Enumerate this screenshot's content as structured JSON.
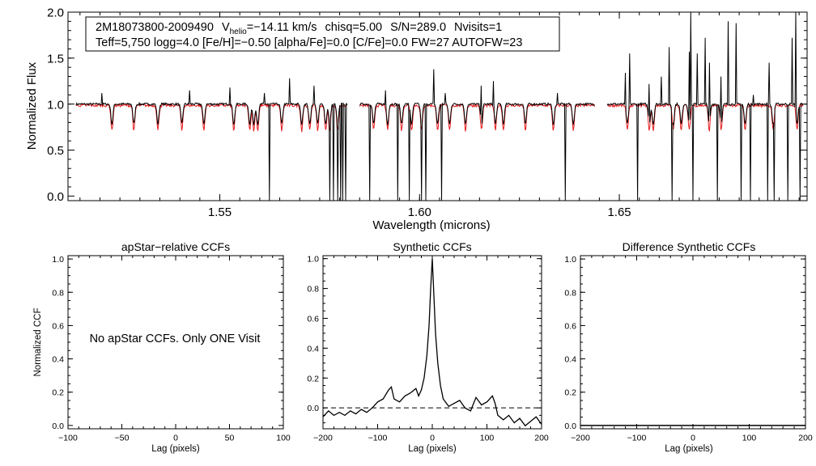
{
  "chart_data": [
    {
      "type": "line",
      "xlabel": "Wavelength (microns)",
      "ylabel": "Normalized Flux",
      "xlim": [
        1.512,
        1.697
      ],
      "ylim": [
        -0.05,
        2.0
      ],
      "xticks": [
        "1.55",
        "1.60",
        "1.65"
      ],
      "yticks": [
        "0.0",
        "0.5",
        "1.0",
        "1.5",
        "2.0"
      ],
      "info": {
        "star": "2M18073800-2009490",
        "vhelio_label": "V",
        "vhelio_sub": "helio",
        "vhelio_value": "=−14.11 km/s",
        "chisq": "chisq=5.00",
        "snr": "S/N=289.0",
        "nvisits": "Nvisits=1",
        "params_part1": "Teff=5,750 logg=4.0 [Fe/H]=−0.50 [alpha/Fe]=0.0 [C/Fe]=0.0 FW=27 AUTOFW=23"
      },
      "chips": [
        {
          "x_start": 1.514,
          "x_end": 1.582
        },
        {
          "x_start": 1.585,
          "x_end": 1.644
        },
        {
          "x_start": 1.647,
          "x_end": 1.696
        }
      ],
      "series": [
        {
          "kind": "observed",
          "color": "#000000"
        },
        {
          "kind": "model",
          "color": "#e41a1c"
        }
      ],
      "absorption_lines": [
        1.523,
        1.5285,
        1.5345,
        1.5405,
        1.546,
        1.5535,
        1.5575,
        1.5585,
        1.5595,
        1.5655,
        1.5705,
        1.5725,
        1.5745,
        1.5765,
        1.5775,
        1.5795,
        1.5885,
        1.592,
        1.5955,
        1.598,
        1.6005,
        1.6045,
        1.6075,
        1.6115,
        1.6155,
        1.619,
        1.621,
        1.6265,
        1.6335,
        1.6385,
        1.652,
        1.6575,
        1.6585,
        1.6635,
        1.6655,
        1.6675,
        1.6725,
        1.6755,
        1.6815,
        1.6885,
        1.6945
      ],
      "drop_to_zero": [
        1.5625,
        1.5735,
        1.5775,
        1.5785,
        1.5795,
        1.5802,
        1.5808,
        1.5815,
        1.5875,
        1.5915,
        1.5945,
        1.5975,
        1.6005,
        1.6015,
        1.6035,
        1.6055,
        1.6365,
        1.6545,
        1.6575,
        1.6605,
        1.6632,
        1.6685,
        1.6715,
        1.6745,
        1.6772,
        1.6805,
        1.6828,
        1.6872,
        1.6888,
        1.6922,
        1.6942,
        1.6952
      ],
      "emission_spikes": [
        {
          "x": 1.5205,
          "y": 1.12
        },
        {
          "x": 1.5425,
          "y": 1.15
        },
        {
          "x": 1.5525,
          "y": 1.18
        },
        {
          "x": 1.5612,
          "y": 1.12
        },
        {
          "x": 1.5675,
          "y": 1.28
        },
        {
          "x": 1.5735,
          "y": 1.2
        },
        {
          "x": 1.5915,
          "y": 1.15
        },
        {
          "x": 1.6035,
          "y": 1.38
        },
        {
          "x": 1.6065,
          "y": 1.12
        },
        {
          "x": 1.6155,
          "y": 1.2
        },
        {
          "x": 1.6185,
          "y": 1.25
        },
        {
          "x": 1.6345,
          "y": 1.12
        },
        {
          "x": 1.6515,
          "y": 1.34
        },
        {
          "x": 1.6525,
          "y": 1.55
        },
        {
          "x": 1.6575,
          "y": 1.22
        },
        {
          "x": 1.6605,
          "y": 1.3
        },
        {
          "x": 1.6625,
          "y": 1.62
        },
        {
          "x": 1.6675,
          "y": 1.57
        },
        {
          "x": 1.6678,
          "y": 2.0
        },
        {
          "x": 1.6695,
          "y": 1.55
        },
        {
          "x": 1.6715,
          "y": 1.72
        },
        {
          "x": 1.6725,
          "y": 1.45
        },
        {
          "x": 1.6755,
          "y": 1.3
        },
        {
          "x": 1.6772,
          "y": 1.9
        },
        {
          "x": 1.6792,
          "y": 1.88
        },
        {
          "x": 1.6835,
          "y": 1.1
        },
        {
          "x": 1.6875,
          "y": 1.45
        },
        {
          "x": 1.6932,
          "y": 1.72
        },
        {
          "x": 1.6942,
          "y": 2.0
        }
      ]
    },
    {
      "type": "line",
      "title": "apStar−relative CCFs",
      "xlabel": "Lag (pixels)",
      "ylabel": "Normalized CCF",
      "xlim": [
        -100,
        100
      ],
      "ylim": [
        -0.02,
        1.02
      ],
      "xticks": [
        "−100",
        "−50",
        "0",
        "50",
        "100"
      ],
      "yticks": [
        "0.0",
        "0.2",
        "0.4",
        "0.6",
        "0.8",
        "1.0"
      ],
      "annotation": "No apStar CCFs.  Only ONE Visit"
    },
    {
      "type": "line",
      "title": "Synthetic CCFs",
      "xlabel": "Lag (pixels)",
      "xlim": [
        -200,
        200
      ],
      "ylim": [
        -0.14,
        1.02
      ],
      "xticks": [
        "−200",
        "−100",
        "0",
        "100",
        "200"
      ],
      "yticks": [
        "0.0",
        "0.2",
        "0.4",
        "0.6",
        "0.8",
        "1.0"
      ],
      "series": [
        {
          "x": [
            -200,
            -190,
            -180,
            -170,
            -160,
            -150,
            -140,
            -130,
            -120,
            -110,
            -100,
            -90,
            -80,
            -75,
            -70,
            -60,
            -50,
            -40,
            -30,
            -25,
            -20,
            -15,
            -10,
            -6,
            -3,
            0,
            3,
            6,
            10,
            15,
            20,
            30,
            40,
            50,
            60,
            70,
            80,
            90,
            100,
            110,
            115,
            120,
            130,
            140,
            150,
            160,
            170,
            180,
            190,
            200
          ],
          "y": [
            -0.06,
            -0.02,
            -0.05,
            -0.03,
            -0.05,
            -0.02,
            -0.04,
            -0.01,
            -0.03,
            0.0,
            0.04,
            0.06,
            0.12,
            0.14,
            0.06,
            0.04,
            0.08,
            0.1,
            0.13,
            0.08,
            0.12,
            0.2,
            0.35,
            0.55,
            0.8,
            1.0,
            0.75,
            0.5,
            0.3,
            0.15,
            0.06,
            0.01,
            0.03,
            0.05,
            0.0,
            -0.02,
            0.07,
            0.02,
            0.04,
            0.08,
            0.03,
            -0.05,
            -0.08,
            -0.05,
            -0.1,
            -0.07,
            -0.12,
            -0.09,
            -0.06,
            -0.11
          ]
        }
      ],
      "hline": 0.0
    },
    {
      "type": "line",
      "title": "Difference Synthetic CCFs",
      "xlabel": "Lag (pixels)",
      "xlim": [
        -200,
        200
      ],
      "ylim": [
        -0.02,
        1.02
      ],
      "xticks": [
        "−200",
        "−100",
        "0",
        "100",
        "200"
      ],
      "yticks": [
        "0.0",
        "0.2",
        "0.4",
        "0.6",
        "0.8",
        "1.0"
      ],
      "series": [
        {
          "x": [
            -200,
            200
          ],
          "y": [
            0.0,
            0.0
          ]
        }
      ]
    }
  ]
}
